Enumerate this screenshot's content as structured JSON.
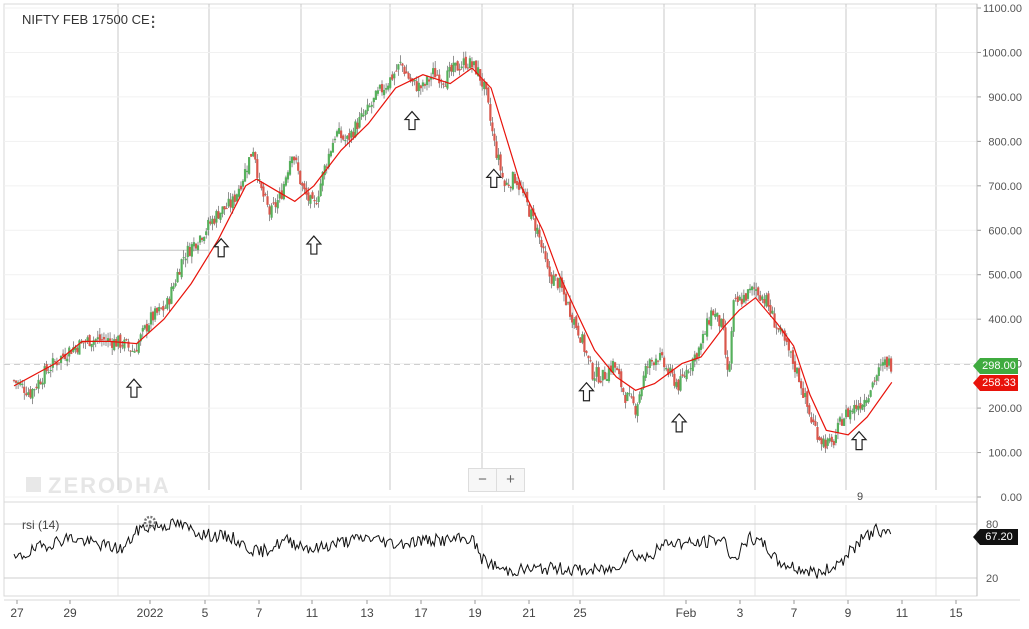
{
  "instrument": {
    "title": "NIFTY FEB 17500 CE",
    "menu_icon": "vertical-dots-icon"
  },
  "watermark": "ZERODHA",
  "zoom": {
    "minus": "−",
    "plus": "+"
  },
  "badges": {
    "last_price": "298.00",
    "ma_value": "258.33",
    "rsi_value": "67.20"
  },
  "colors": {
    "up": "#56b05c",
    "down": "#d9574c",
    "ma": "#e8130b",
    "rsi": "#111111",
    "green_badge": "#3fab3f",
    "red_badge": "#e8130b"
  },
  "annotation": {
    "text": "9"
  },
  "chart_data": [
    {
      "type": "candlestick",
      "title": "NIFTY FEB 17500 CE",
      "y_ticks": [
        "0.00",
        "100.00",
        "200.00",
        "300.00",
        "400.00",
        "500.00",
        "600.00",
        "700.00",
        "800.00",
        "900.00",
        "1000.00",
        "1100.00"
      ],
      "ylim": [
        0,
        1100
      ],
      "x_ticks": [
        "27",
        "29",
        "2022",
        "5",
        "7",
        "11",
        "13",
        "17",
        "19",
        "21",
        "25",
        "Feb",
        "3",
        "7",
        "9",
        "11",
        "15"
      ],
      "close_path": [
        [
          0,
          262
        ],
        [
          0.6,
          235
        ],
        [
          1.2,
          285
        ],
        [
          2,
          330
        ],
        [
          2.8,
          355
        ],
        [
          3.5,
          352
        ],
        [
          4,
          345
        ],
        [
          4.4,
          328
        ],
        [
          5,
          400
        ],
        [
          5.6,
          430
        ],
        [
          6.2,
          540
        ],
        [
          7,
          600
        ],
        [
          7.5,
          640
        ],
        [
          8,
          660
        ],
        [
          8.4,
          720
        ],
        [
          8.8,
          790
        ],
        [
          9,
          700
        ],
        [
          9.4,
          635
        ],
        [
          9.8,
          680
        ],
        [
          10.2,
          780
        ],
        [
          10.6,
          690
        ],
        [
          11,
          650
        ],
        [
          11.4,
          740
        ],
        [
          11.8,
          820
        ],
        [
          12.2,
          800
        ],
        [
          12.6,
          840
        ],
        [
          13,
          870
        ],
        [
          13.4,
          910
        ],
        [
          13.8,
          940
        ],
        [
          14.2,
          975
        ],
        [
          14.6,
          930
        ],
        [
          15,
          920
        ],
        [
          15.4,
          955
        ],
        [
          15.8,
          940
        ],
        [
          16.2,
          965
        ],
        [
          16.6,
          980
        ],
        [
          17,
          960
        ],
        [
          17.3,
          910
        ],
        [
          17.6,
          800
        ],
        [
          18,
          700
        ],
        [
          18.4,
          720
        ],
        [
          18.8,
          660
        ],
        [
          19.2,
          600
        ],
        [
          19.6,
          500
        ],
        [
          20,
          480
        ],
        [
          20.4,
          420
        ],
        [
          20.8,
          360
        ],
        [
          21.2,
          280
        ],
        [
          21.6,
          270
        ],
        [
          22,
          300
        ],
        [
          22.4,
          230
        ],
        [
          22.8,
          200
        ],
        [
          23.2,
          290
        ],
        [
          23.6,
          320
        ],
        [
          24,
          280
        ],
        [
          24.4,
          250
        ],
        [
          24.8,
          300
        ],
        [
          25.2,
          340
        ],
        [
          25.6,
          420
        ],
        [
          26,
          380
        ],
        [
          26.2,
          260
        ],
        [
          26.4,
          430
        ],
        [
          26.8,
          450
        ],
        [
          27.2,
          470
        ],
        [
          27.6,
          440
        ],
        [
          28,
          380
        ],
        [
          28.4,
          330
        ],
        [
          28.8,
          270
        ],
        [
          29.2,
          180
        ],
        [
          29.6,
          130
        ],
        [
          30,
          115
        ],
        [
          30.4,
          180
        ],
        [
          30.8,
          200
        ],
        [
          31.2,
          220
        ],
        [
          31.6,
          270
        ],
        [
          32,
          305
        ],
        [
          32.2,
          298
        ]
      ],
      "series": [
        {
          "name": "MA",
          "values": [
            [
              0,
              250
            ],
            [
              1.5,
              300
            ],
            [
              2.5,
              350
            ],
            [
              3.5,
              350
            ],
            [
              4.5,
              345
            ],
            [
              5.5,
              400
            ],
            [
              6.5,
              480
            ],
            [
              7.5,
              580
            ],
            [
              8.5,
              700
            ],
            [
              8.9,
              715
            ],
            [
              9.6,
              690
            ],
            [
              10.3,
              665
            ],
            [
              11,
              700
            ],
            [
              12,
              780
            ],
            [
              13,
              840
            ],
            [
              14,
              920
            ],
            [
              15,
              950
            ],
            [
              16,
              930
            ],
            [
              16.8,
              965
            ],
            [
              17.5,
              920
            ],
            [
              18,
              820
            ],
            [
              18.6,
              700
            ],
            [
              19.4,
              600
            ],
            [
              20,
              500
            ],
            [
              20.6,
              420
            ],
            [
              21.3,
              330
            ],
            [
              22.1,
              270
            ],
            [
              22.8,
              240
            ],
            [
              23.5,
              255
            ],
            [
              24.5,
              300
            ],
            [
              25.2,
              315
            ],
            [
              26,
              380
            ],
            [
              26.6,
              420
            ],
            [
              27.2,
              448
            ],
            [
              28,
              390
            ],
            [
              28.6,
              340
            ],
            [
              29.2,
              230
            ],
            [
              29.8,
              150
            ],
            [
              30.6,
              140
            ],
            [
              31.3,
              180
            ],
            [
              32.2,
              258
            ]
          ]
        }
      ],
      "signals_x": [
        4.4,
        7.6,
        11,
        14.6,
        17.6,
        21,
        24.4,
        31
      ]
    },
    {
      "type": "line",
      "title": "rsi (14)",
      "y_ticks": [
        "80",
        "20"
      ],
      "ylim": [
        0,
        100
      ],
      "series": [
        {
          "name": "rsi (14)",
          "values": [
            [
              0,
              40
            ],
            [
              1,
              55
            ],
            [
              2,
              65
            ],
            [
              3,
              58
            ],
            [
              4,
              52
            ],
            [
              4.6,
              75
            ],
            [
              5.2,
              78
            ],
            [
              6,
              80
            ],
            [
              7,
              68
            ],
            [
              8,
              65
            ],
            [
              8.5,
              55
            ],
            [
              9,
              48
            ],
            [
              10,
              62
            ],
            [
              11,
              52
            ],
            [
              12,
              60
            ],
            [
              13,
              65
            ],
            [
              14,
              58
            ],
            [
              15,
              62
            ],
            [
              16,
              62
            ],
            [
              16.8,
              64
            ],
            [
              17.2,
              40
            ],
            [
              18,
              28
            ],
            [
              19,
              30
            ],
            [
              20,
              31
            ],
            [
              21,
              28
            ],
            [
              22,
              30
            ],
            [
              22.6,
              48
            ],
            [
              23.2,
              42
            ],
            [
              24,
              60
            ],
            [
              25,
              58
            ],
            [
              26,
              64
            ],
            [
              26.4,
              40
            ],
            [
              27,
              64
            ],
            [
              27.6,
              55
            ],
            [
              28,
              38
            ],
            [
              28.8,
              30
            ],
            [
              29.6,
              25
            ],
            [
              30.4,
              40
            ],
            [
              31,
              60
            ],
            [
              31.6,
              74
            ],
            [
              32.2,
              67
            ]
          ]
        }
      ]
    }
  ]
}
